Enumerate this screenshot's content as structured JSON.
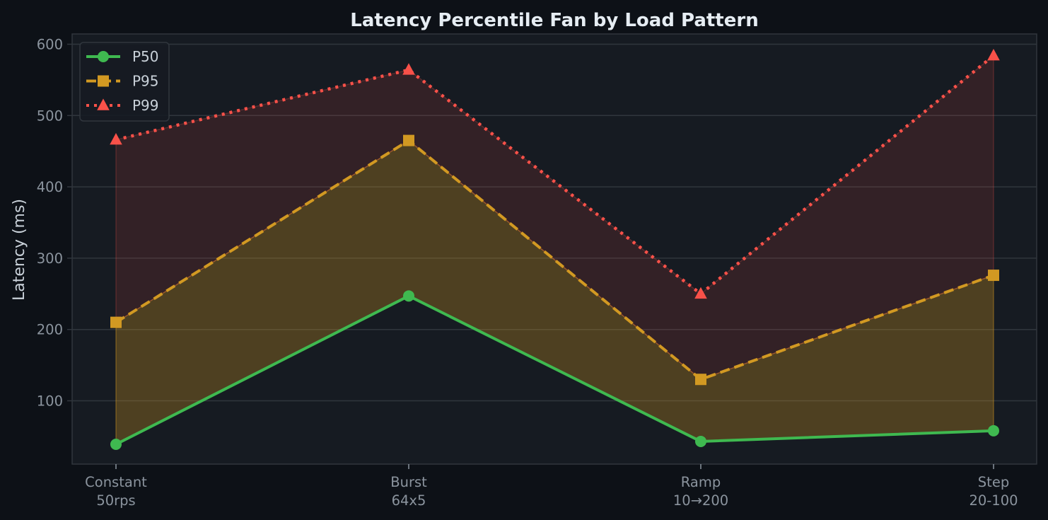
{
  "chart_data": {
    "type": "line",
    "title": "Latency Percentile Fan by Load Pattern",
    "xlabel": "",
    "ylabel": "Latency (ms)",
    "categories": [
      "Constant\n50rps",
      "Burst\n64x5",
      "Ramp\n10→200",
      "Step\n20-100"
    ],
    "category_lines": [
      [
        "Constant",
        "50rps"
      ],
      [
        "Burst",
        "64x5"
      ],
      [
        "Ramp",
        "10→200"
      ],
      [
        "Step",
        "20-100"
      ]
    ],
    "yticks": [
      100,
      200,
      300,
      400,
      500,
      600
    ],
    "ylim": [
      11,
      614
    ],
    "grid": true,
    "legend_position": "upper left",
    "series": [
      {
        "name": "P50",
        "values": [
          39,
          247,
          43,
          58
        ],
        "color": "#3fb950",
        "linestyle": "solid",
        "marker": "circle"
      },
      {
        "name": "P95",
        "values": [
          210,
          465,
          130,
          276
        ],
        "color": "#d29922",
        "linestyle": "dashed",
        "marker": "square"
      },
      {
        "name": "P99",
        "values": [
          466,
          564,
          250,
          584
        ],
        "color": "#f85149",
        "linestyle": "dotted",
        "marker": "triangle"
      }
    ],
    "fills": [
      {
        "between": [
          "P50",
          "P95"
        ],
        "color": "#d29922",
        "alpha": 0.3
      },
      {
        "between": [
          "P95",
          "P99"
        ],
        "color": "#f85149",
        "alpha": 0.13
      }
    ]
  },
  "colors": {
    "figure_bg": "#0d1117",
    "axes_bg": "#161b22",
    "grid": "#30363d",
    "spine": "#30363d"
  }
}
